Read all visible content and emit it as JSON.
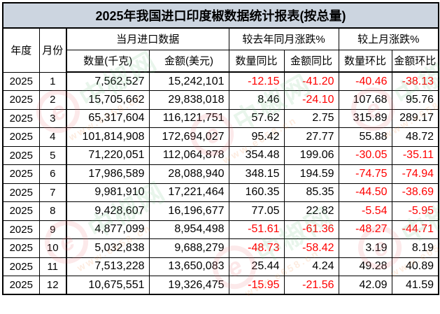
{
  "title": "2025年我国进口印度椒数据统计报表(按总量)",
  "colors": {
    "title_background": "#ccd5e0",
    "negative_value": "#ff0000",
    "border": "#000000",
    "watermark_pink": "#ec7882",
    "watermark_green": "#6ebe82",
    "watermark_orange": "#ee8c46"
  },
  "table": {
    "header": {
      "year": "年度",
      "month": "月份",
      "group_current": "当月进口数据",
      "group_yoy": "较去年同月涨跌%",
      "group_mom": "较上月涨跌%",
      "quantity": "数量(千克)",
      "amount": "金额(美元)",
      "quantity_yoy": "数量同比",
      "amount_yoy": "金额同比",
      "quantity_mom": "数量环比",
      "amount_mom": "金额环比"
    },
    "rows": [
      {
        "year": "2025",
        "month": "1",
        "qty": "7,562,527",
        "amount": "15,242,101",
        "qty_yoy": "-12.15",
        "amount_yoy": "-41.20",
        "qty_mom": "-40.46",
        "amount_mom": "-38.13"
      },
      {
        "year": "2025",
        "month": "2",
        "qty": "15,705,662",
        "amount": "29,838,018",
        "qty_yoy": "8.46",
        "amount_yoy": "-24.10",
        "qty_mom": "107.68",
        "amount_mom": "95.76"
      },
      {
        "year": "2025",
        "month": "3",
        "qty": "65,317,604",
        "amount": "116,121,751",
        "qty_yoy": "57.62",
        "amount_yoy": "2.75",
        "qty_mom": "315.89",
        "amount_mom": "289.17"
      },
      {
        "year": "2025",
        "month": "4",
        "qty": "101,814,908",
        "amount": "172,694,027",
        "qty_yoy": "95.42",
        "amount_yoy": "27.77",
        "qty_mom": "55.88",
        "amount_mom": "48.72"
      },
      {
        "year": "2025",
        "month": "5",
        "qty": "71,220,051",
        "amount": "112,064,878",
        "qty_yoy": "354.48",
        "amount_yoy": "199.06",
        "qty_mom": "-30.05",
        "amount_mom": "-35.11"
      },
      {
        "year": "2025",
        "month": "6",
        "qty": "17,986,589",
        "amount": "28,088,940",
        "qty_yoy": "348.15",
        "amount_yoy": "194.59",
        "qty_mom": "-74.75",
        "amount_mom": "-74.94"
      },
      {
        "year": "2025",
        "month": "7",
        "qty": "9,981,910",
        "amount": "17,221,464",
        "qty_yoy": "160.35",
        "amount_yoy": "85.35",
        "qty_mom": "-44.50",
        "amount_mom": "-38.69"
      },
      {
        "year": "2025",
        "month": "8",
        "qty": "9,428,607",
        "amount": "16,196,677",
        "qty_yoy": "77.05",
        "amount_yoy": "22.82",
        "qty_mom": "-5.54",
        "amount_mom": "-5.95"
      },
      {
        "year": "2025",
        "month": "9",
        "qty": "4,877,099",
        "amount": "8,954,498",
        "qty_yoy": "-51.61",
        "amount_yoy": "-61.36",
        "qty_mom": "-48.27",
        "amount_mom": "-44.71"
      },
      {
        "year": "2025",
        "month": "10",
        "qty": "5,032,838",
        "amount": "9,688,279",
        "qty_yoy": "-48.73",
        "amount_yoy": "-58.42",
        "qty_mom": "3.19",
        "amount_mom": "8.19"
      },
      {
        "year": "2025",
        "month": "11",
        "qty": "7,513,228",
        "amount": "13,650,083",
        "qty_yoy": "25.44",
        "amount_yoy": "4.24",
        "qty_mom": "49.28",
        "amount_mom": "40.89"
      },
      {
        "year": "2025",
        "month": "12",
        "qty": "10,675,551",
        "amount": "19,326,475",
        "qty_yoy": "-15.95",
        "amount_yoy": "-21.56",
        "qty_mom": "42.09",
        "amount_mom": "41.59"
      }
    ]
  },
  "watermark": {
    "logo_letter": "e",
    "brand_text": "中椒网",
    "url_text": "www.e658.cn"
  }
}
